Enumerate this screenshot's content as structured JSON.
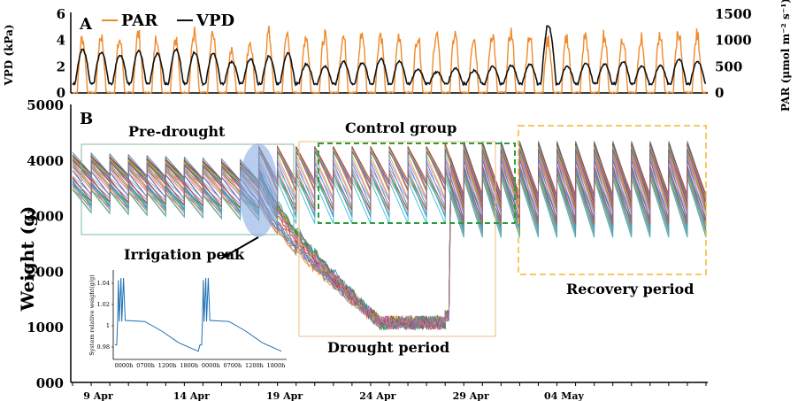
{
  "chart_data": [
    {
      "panel": "A",
      "type": "line",
      "ylabel_left": "VPD (kPa)",
      "ylabel_right": "PAR (μmol m⁻² s⁻¹)",
      "ylim_left": [
        0,
        6
      ],
      "ylim_right": [
        0,
        1500
      ],
      "yticks_left": [
        "0",
        "2",
        "4",
        "6"
      ],
      "yticks_right": [
        "0",
        "500",
        "1000",
        "1500"
      ],
      "legend": [
        {
          "label": "PAR",
          "color": "#f08a2c"
        },
        {
          "label": "VPD",
          "color": "#111111"
        }
      ],
      "days": 34,
      "series": [
        {
          "name": "PAR",
          "axis": "right",
          "daily_peak": [
            1200,
            1250,
            1150,
            1280,
            1230,
            1200,
            1300,
            1260,
            900,
            1150,
            1300,
            1280,
            1260,
            1250,
            1230,
            1280,
            1300,
            1260,
            1250,
            1300,
            1280,
            1230,
            1300,
            1320,
            1260,
            1150,
            1200,
            1250,
            1280,
            1230,
            1200,
            1300,
            1350,
            1250
          ]
        },
        {
          "name": "VPD",
          "axis": "left",
          "daily_peak": [
            3.3,
            3.1,
            2.9,
            3.2,
            3.0,
            3.3,
            3.1,
            3.0,
            2.4,
            2.6,
            2.8,
            3.0,
            2.2,
            2.0,
            2.4,
            2.3,
            2.6,
            2.4,
            1.8,
            1.6,
            1.9,
            1.7,
            2.0,
            2.1,
            2.2,
            5.1,
            2.0,
            2.3,
            2.2,
            2.4,
            2.0,
            2.1,
            2.6,
            2.4
          ]
        }
      ]
    },
    {
      "panel": "B",
      "type": "line",
      "ylabel": "Weight (g)",
      "ylim": [
        0,
        5000
      ],
      "yticks": [
        "000",
        "1000",
        "2000",
        "3000",
        "4000",
        "5000"
      ],
      "xticks": [
        "9 Apr",
        "14 Apr",
        "19 Apr",
        "24 Apr",
        "29 Apr",
        "04 May"
      ],
      "series_description": "many individual plant-system weight traces",
      "phases": [
        {
          "label": "Pre-drought",
          "start_day": 0,
          "end_day": 10
        },
        {
          "label": "Drought period",
          "start_day": 10,
          "end_day": 20
        },
        {
          "label": "Control group",
          "start_day": 10,
          "end_day": 20
        },
        {
          "label": "Recovery period",
          "start_day": 20,
          "end_day": 34
        }
      ],
      "approx_series": [
        {
          "group": "control",
          "daily_peak": 3900,
          "daily_min": 3300
        },
        {
          "group": "drought",
          "start": 3600,
          "end": 1000
        },
        {
          "group": "recovery",
          "daily_peak": 4100,
          "daily_min": 2700
        }
      ],
      "annotations": [
        "Pre-drought",
        "Control group",
        "Irrigation peak",
        "Drought period",
        "Recovery period"
      ]
    },
    {
      "panel": "inset",
      "type": "line",
      "ylabel": "System relative weight(g/g)",
      "yticks": [
        "0.98",
        "1",
        "1.02",
        "1.04"
      ],
      "xticks": [
        "0000h",
        "0700h",
        "1200h",
        "1800h",
        "0000h",
        "0700h",
        "1200h",
        "1800h"
      ],
      "ylim": [
        0.97,
        1.05
      ]
    }
  ],
  "labels": {
    "panel_a": "A",
    "panel_b": "B"
  }
}
